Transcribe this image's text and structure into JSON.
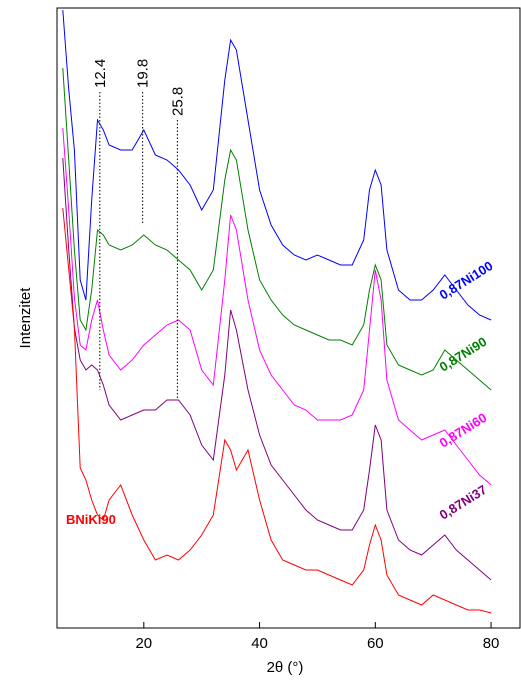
{
  "chart_data": {
    "type": "line",
    "x_label": "2θ (°)",
    "y_label": "Intenzitet",
    "xlim": [
      5,
      85
    ],
    "xticks": [
      20,
      40,
      60,
      80
    ],
    "ylim": [
      0,
      620
    ],
    "x": [
      6,
      7,
      8,
      9,
      10,
      11,
      12,
      13,
      14,
      16,
      18,
      20,
      22,
      24,
      26,
      28,
      30,
      32,
      34,
      35,
      36,
      38,
      40,
      42,
      44,
      46,
      48,
      50,
      52,
      54,
      56,
      58,
      59,
      60,
      61,
      62,
      64,
      66,
      68,
      70,
      72,
      74,
      76,
      78,
      80
    ],
    "series": [
      {
        "name": "0,87Ni100",
        "color": "#0000ff",
        "values": [
          618,
          540,
          478,
          348,
          328,
          428,
          508,
          498,
          483,
          478,
          478,
          498,
          473,
          468,
          458,
          443,
          418,
          438,
          548,
          588,
          578,
          508,
          438,
          403,
          383,
          373,
          368,
          373,
          368,
          363,
          363,
          388,
          438,
          458,
          443,
          378,
          338,
          328,
          328,
          338,
          353,
          338,
          323,
          313,
          308
        ]
      },
      {
        "name": "0,87Ni90",
        "color": "#008000",
        "values": [
          560,
          470,
          378,
          308,
          298,
          338,
          398,
          393,
          383,
          378,
          383,
          393,
          383,
          378,
          368,
          358,
          338,
          358,
          448,
          478,
          468,
          398,
          348,
          328,
          313,
          303,
          298,
          293,
          288,
          288,
          283,
          303,
          338,
          363,
          348,
          283,
          263,
          258,
          253,
          258,
          278,
          268,
          258,
          248,
          238
        ]
      },
      {
        "name": "0,87Ni60",
        "color": "#ff00ff",
        "values": [
          500,
          420,
          330,
          283,
          278,
          308,
          328,
          298,
          273,
          258,
          268,
          283,
          293,
          303,
          308,
          298,
          258,
          243,
          348,
          413,
          398,
          328,
          278,
          253,
          238,
          223,
          218,
          208,
          208,
          208,
          213,
          238,
          298,
          358,
          328,
          248,
          208,
          198,
          188,
          193,
          198,
          183,
          168,
          153,
          143
        ]
      },
      {
        "name": "0,87Ni37",
        "color": "#800080",
        "values": [
          470,
          380,
          300,
          268,
          258,
          263,
          258,
          243,
          223,
          208,
          213,
          218,
          218,
          228,
          228,
          213,
          183,
          168,
          253,
          318,
          298,
          238,
          193,
          163,
          148,
          133,
          118,
          108,
          103,
          98,
          98,
          118,
          158,
          203,
          188,
          118,
          88,
          78,
          73,
          83,
          93,
          78,
          68,
          58,
          48
        ]
      },
      {
        "name": "BNiKi90",
        "color": "#ff0000",
        "values": [
          420,
          360,
          300,
          160,
          148,
          128,
          113,
          108,
          128,
          143,
          113,
          88,
          68,
          73,
          68,
          78,
          93,
          113,
          188,
          178,
          158,
          178,
          128,
          88,
          68,
          63,
          58,
          58,
          53,
          48,
          43,
          58,
          83,
          103,
          88,
          53,
          33,
          28,
          23,
          33,
          28,
          23,
          18,
          18,
          15
        ]
      }
    ],
    "annotations": [
      {
        "x": 12.4,
        "text": "12.4"
      },
      {
        "x": 19.8,
        "text": "19.8"
      },
      {
        "x": 25.8,
        "text": "25.8"
      }
    ]
  }
}
